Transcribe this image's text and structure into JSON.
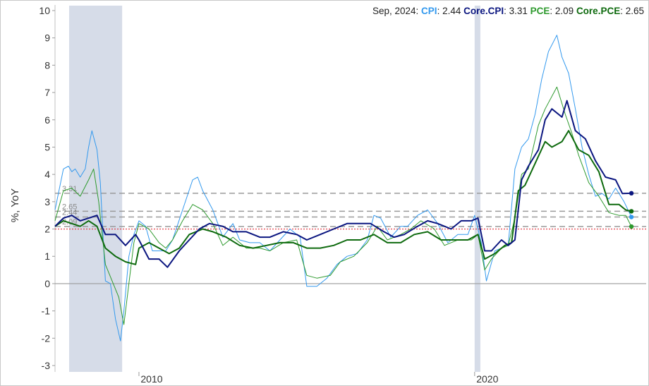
{
  "chart_data": {
    "type": "line",
    "ylabel": "%, YoY",
    "ylim": [
      -3,
      10
    ],
    "xlim": [
      2007.5,
      2024.9
    ],
    "y_ticks": [
      "10",
      "9",
      "8",
      "7",
      "6",
      "5",
      "4",
      "3",
      "2",
      "1",
      "0",
      "-1",
      "-2",
      "-3"
    ],
    "x_ticks": [
      {
        "label": "2010",
        "x": 2010.0
      },
      {
        "label": "2020",
        "x": 2020.0
      }
    ],
    "grid": false,
    "legend": {
      "placement": "top-right",
      "date_label": "Sep, 2024:",
      "entries": [
        {
          "name": "CPI",
          "value": "2.44",
          "color": "#3399ee"
        },
        {
          "name": "Core.CPI",
          "value": "3.31",
          "color": "#0b1680"
        },
        {
          "name": "PCE",
          "value": "2.09",
          "color": "#2e9a2e"
        },
        {
          "name": "Core.PCE",
          "value": "2.65",
          "color": "#0e6a0e"
        }
      ]
    },
    "recessions": [
      {
        "start": 2007.92,
        "end": 2009.5
      },
      {
        "start": 2020.0,
        "end": 2020.17
      }
    ],
    "target_line": {
      "y": 2.0,
      "color": "#e0303a"
    },
    "reference_lines": [
      {
        "y": 3.31,
        "label": "3.31"
      },
      {
        "y": 2.65,
        "label": "2.65"
      },
      {
        "y": 2.44,
        "label": "2.44"
      },
      {
        "y": 2.09,
        "label": "2.09"
      }
    ],
    "series": [
      {
        "name": "CPI",
        "color": "#3399ee",
        "width": 1,
        "x": [
          2007.5,
          2007.75,
          2007.9,
          2008.0,
          2008.1,
          2008.25,
          2008.4,
          2008.5,
          2008.6,
          2008.75,
          2008.85,
          2009.0,
          2009.15,
          2009.3,
          2009.45,
          2009.55,
          2009.7,
          2009.85,
          2010.0,
          2010.2,
          2010.4,
          2010.6,
          2010.8,
          2011.0,
          2011.3,
          2011.6,
          2011.75,
          2011.9,
          2012.2,
          2012.5,
          2012.8,
          2013.0,
          2013.3,
          2013.6,
          2013.9,
          2014.2,
          2014.5,
          2014.8,
          2015.0,
          2015.3,
          2015.6,
          2015.9,
          2016.2,
          2016.5,
          2016.8,
          2017.0,
          2017.2,
          2017.5,
          2017.8,
          2018.0,
          2018.3,
          2018.6,
          2018.9,
          2019.2,
          2019.5,
          2019.8,
          2020.0,
          2020.2,
          2020.35,
          2020.6,
          2020.8,
          2021.0,
          2021.2,
          2021.4,
          2021.6,
          2021.8,
          2022.0,
          2022.2,
          2022.45,
          2022.6,
          2022.8,
          2023.0,
          2023.2,
          2023.4,
          2023.6,
          2023.8,
          2024.0,
          2024.2,
          2024.45,
          2024.67
        ],
        "y": [
          2.7,
          4.2,
          4.3,
          4.1,
          4.2,
          3.9,
          4.2,
          5.0,
          5.6,
          4.9,
          3.7,
          0.1,
          0.0,
          -1.3,
          -2.1,
          -1.0,
          1.0,
          1.8,
          2.3,
          2.1,
          1.2,
          1.2,
          1.2,
          1.6,
          2.7,
          3.8,
          3.9,
          3.4,
          2.7,
          1.7,
          2.2,
          1.6,
          1.5,
          1.5,
          1.2,
          1.6,
          2.0,
          1.7,
          -0.1,
          -0.1,
          0.2,
          0.7,
          1.0,
          1.1,
          1.6,
          2.5,
          2.4,
          1.7,
          2.1,
          2.1,
          2.5,
          2.7,
          2.2,
          1.5,
          1.8,
          1.8,
          2.5,
          1.5,
          0.1,
          1.2,
          1.3,
          1.4,
          4.2,
          5.0,
          5.3,
          6.2,
          7.5,
          8.5,
          9.1,
          8.3,
          7.7,
          6.4,
          5.0,
          4.0,
          3.2,
          3.3,
          3.1,
          3.5,
          3.0,
          2.44
        ]
      },
      {
        "name": "Core.CPI",
        "color": "#0b1680",
        "width": 2,
        "x": [
          2007.5,
          2007.75,
          2008.0,
          2008.25,
          2008.5,
          2008.75,
          2009.0,
          2009.3,
          2009.6,
          2009.9,
          2010.0,
          2010.3,
          2010.6,
          2010.85,
          2011.2,
          2011.5,
          2011.8,
          2012.1,
          2012.5,
          2012.8,
          2013.2,
          2013.6,
          2013.9,
          2014.3,
          2014.7,
          2015.0,
          2015.4,
          2015.8,
          2016.2,
          2016.6,
          2016.9,
          2017.3,
          2017.6,
          2017.9,
          2018.3,
          2018.6,
          2018.9,
          2019.3,
          2019.6,
          2019.9,
          2020.1,
          2020.3,
          2020.5,
          2020.8,
          2021.0,
          2021.2,
          2021.4,
          2021.6,
          2021.9,
          2022.1,
          2022.3,
          2022.6,
          2022.75,
          2023.0,
          2023.3,
          2023.6,
          2023.9,
          2024.2,
          2024.4,
          2024.67
        ],
        "y": [
          2.1,
          2.4,
          2.5,
          2.3,
          2.4,
          2.5,
          1.8,
          1.8,
          1.4,
          1.8,
          1.6,
          0.9,
          0.9,
          0.6,
          1.2,
          1.6,
          2.0,
          2.2,
          2.1,
          1.9,
          1.9,
          1.7,
          1.7,
          1.9,
          1.8,
          1.6,
          1.8,
          2.0,
          2.2,
          2.2,
          2.2,
          1.9,
          1.7,
          1.8,
          2.1,
          2.3,
          2.2,
          2.0,
          2.3,
          2.3,
          2.4,
          1.2,
          1.2,
          1.6,
          1.4,
          1.6,
          3.8,
          4.3,
          4.9,
          6.0,
          6.4,
          6.1,
          6.7,
          5.6,
          5.3,
          4.5,
          3.9,
          3.8,
          3.3,
          3.31
        ]
      },
      {
        "name": "PCE",
        "color": "#2e9a2e",
        "width": 1,
        "x": [
          2007.5,
          2007.75,
          2008.0,
          2008.25,
          2008.5,
          2008.65,
          2008.8,
          2009.0,
          2009.2,
          2009.4,
          2009.55,
          2009.7,
          2009.85,
          2010.0,
          2010.3,
          2010.6,
          2010.8,
          2011.0,
          2011.3,
          2011.6,
          2011.9,
          2012.2,
          2012.5,
          2012.8,
          2013.2,
          2013.6,
          2013.9,
          2014.3,
          2014.7,
          2015.0,
          2015.3,
          2015.7,
          2016.0,
          2016.4,
          2016.8,
          2017.1,
          2017.4,
          2017.8,
          2018.1,
          2018.4,
          2018.8,
          2019.1,
          2019.5,
          2019.9,
          2020.1,
          2020.3,
          2020.5,
          2020.8,
          2021.0,
          2021.2,
          2021.4,
          2021.6,
          2021.9,
          2022.1,
          2022.45,
          2022.7,
          2022.9,
          2023.1,
          2023.4,
          2023.7,
          2024.0,
          2024.3,
          2024.5,
          2024.67
        ],
        "y": [
          2.3,
          3.4,
          3.5,
          3.2,
          3.8,
          4.2,
          3.0,
          0.7,
          0.1,
          -0.5,
          -1.5,
          0.0,
          1.5,
          2.2,
          2.0,
          1.5,
          1.3,
          1.6,
          2.3,
          2.9,
          2.7,
          2.2,
          1.4,
          1.7,
          1.3,
          1.3,
          1.2,
          1.5,
          1.6,
          0.3,
          0.2,
          0.3,
          0.8,
          1.0,
          1.5,
          2.1,
          1.6,
          1.8,
          2.0,
          2.3,
          2.0,
          1.4,
          1.6,
          1.6,
          1.8,
          0.5,
          0.9,
          1.3,
          1.4,
          2.4,
          4.0,
          4.2,
          5.8,
          6.4,
          7.2,
          6.2,
          5.5,
          4.7,
          3.7,
          3.2,
          2.6,
          2.5,
          2.5,
          2.09
        ]
      },
      {
        "name": "Core.PCE",
        "color": "#0e6a0e",
        "width": 2,
        "x": [
          2007.5,
          2007.75,
          2008.0,
          2008.25,
          2008.5,
          2008.75,
          2009.0,
          2009.3,
          2009.6,
          2009.9,
          2010.0,
          2010.3,
          2010.6,
          2010.9,
          2011.2,
          2011.5,
          2011.9,
          2012.2,
          2012.6,
          2013.0,
          2013.4,
          2013.8,
          2014.2,
          2014.6,
          2015.0,
          2015.4,
          2015.8,
          2016.2,
          2016.6,
          2017.0,
          2017.4,
          2017.8,
          2018.2,
          2018.6,
          2019.0,
          2019.4,
          2019.8,
          2020.1,
          2020.3,
          2020.6,
          2020.9,
          2021.1,
          2021.3,
          2021.5,
          2021.8,
          2022.1,
          2022.3,
          2022.6,
          2022.8,
          2023.1,
          2023.4,
          2023.7,
          2024.0,
          2024.3,
          2024.5,
          2024.67
        ],
        "y": [
          2.1,
          2.3,
          2.2,
          2.1,
          2.3,
          2.1,
          1.3,
          1.0,
          0.8,
          0.7,
          1.3,
          1.5,
          1.3,
          1.1,
          1.3,
          1.8,
          2.0,
          1.9,
          1.7,
          1.4,
          1.3,
          1.4,
          1.5,
          1.5,
          1.3,
          1.3,
          1.4,
          1.6,
          1.6,
          1.8,
          1.5,
          1.5,
          1.8,
          1.9,
          1.6,
          1.6,
          1.6,
          1.8,
          0.9,
          1.1,
          1.4,
          1.5,
          3.4,
          3.6,
          4.4,
          5.2,
          5.0,
          5.2,
          5.6,
          4.9,
          4.7,
          4.1,
          2.9,
          2.9,
          2.7,
          2.65
        ]
      }
    ]
  }
}
